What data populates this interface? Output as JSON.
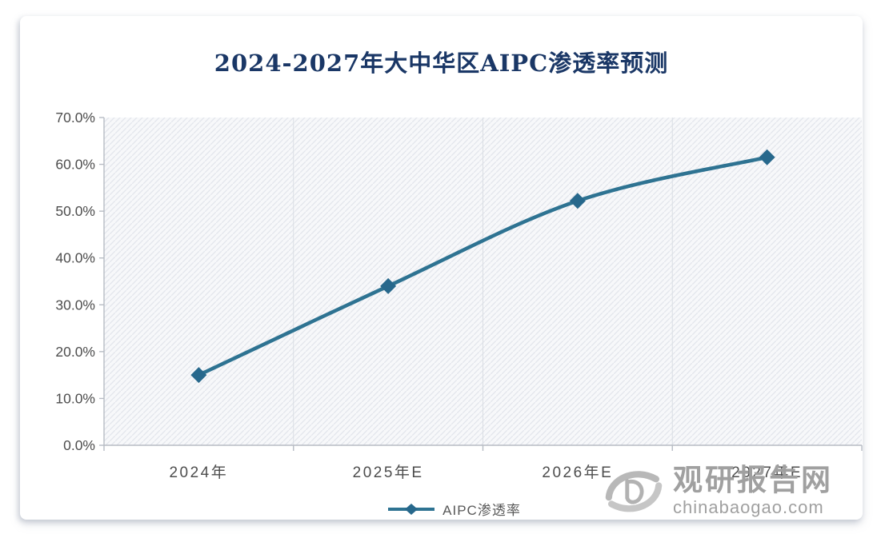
{
  "chart_data": {
    "type": "line",
    "title": "2024-2027年大中华区AIPC渗透率预测",
    "categories": [
      "2024年",
      "2025年E",
      "2026年E",
      "2027年E"
    ],
    "series": [
      {
        "name": "AIPC渗透率",
        "values": [
          15.0,
          34.0,
          52.2,
          61.5
        ]
      }
    ],
    "ylim": [
      0,
      70
    ],
    "ytick_labels": [
      "0.0%",
      "10.0%",
      "20.0%",
      "30.0%",
      "40.0%",
      "50.0%",
      "60.0%",
      "70.0%"
    ],
    "grid": "faint-vertical-category-gridlines",
    "plot_background": "diagonal-hatch",
    "legend_position": "bottom-center",
    "marker": "diamond"
  },
  "legend": {
    "label": "AIPC渗透率"
  },
  "watermark": {
    "brand": "观研报告网",
    "domain": "chinabaogao.com"
  },
  "colors": {
    "title": "#1a3766",
    "line": "#2e7392",
    "marker": "#27688c",
    "axis_text": "#4d4d4d",
    "axis_line": "#b7bcc4",
    "gridline": "#dadee4",
    "hatch_line": "#e3e6ec",
    "plot_bg": "#f7f8fa",
    "watermark": "#a0a0a0"
  }
}
